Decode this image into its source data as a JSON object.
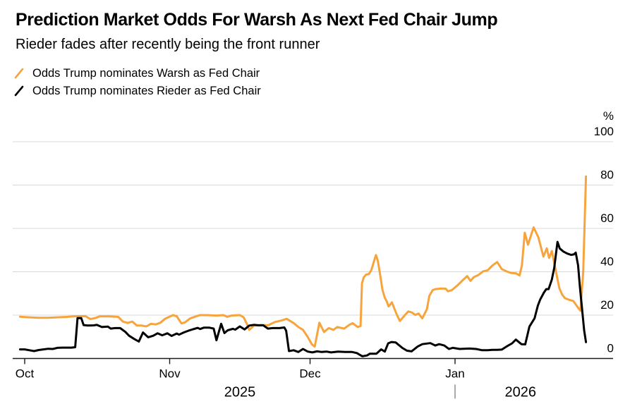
{
  "header": {
    "title": "Prediction Market Odds For Warsh As Next Fed Chair Jump",
    "subtitle": "Rieder fades after recently being the front runner"
  },
  "legend": [
    {
      "label": "Odds Trump nominates Warsh as Fed Chair",
      "color": "#F7A43C"
    },
    {
      "label": "Odds Trump nominates Rieder as Fed Chair",
      "color": "#000000"
    }
  ],
  "colors": {
    "background": "#ffffff",
    "gridline": "#d9d9d9",
    "axis": "#1a1a1a",
    "year_text": "#8e8e8e",
    "warsh_orange": "#F7A43C",
    "rieder_black": "#000000"
  },
  "chart_data": {
    "type": "line",
    "title": "Prediction Market Odds For Warsh As Next Fed Chair Jump",
    "subtitle": "Rieder fades after recently being the front runner",
    "unit_label": "%",
    "ylim": [
      0,
      100
    ],
    "yticks": [
      0,
      20,
      40,
      60,
      80,
      100
    ],
    "grid": "horizontal-only",
    "legend_position": "top-left",
    "x_axis": {
      "note": "day 0 = Oct 1, 2025; data runs Sep 30 2025 to late Jan 2026",
      "month_ticks": [
        {
          "label": "Oct",
          "day": 0
        },
        {
          "label": "Nov",
          "day": 31
        },
        {
          "label": "Dec",
          "day": 61
        },
        {
          "label": "Jan",
          "day": 92
        }
      ],
      "year_labels": [
        {
          "label": "2025",
          "center_day": 46
        },
        {
          "label": "2026",
          "center_day": 106
        }
      ],
      "year_divider_day": 92
    },
    "series": [
      {
        "id": "warsh",
        "name": "Odds Trump nominates Warsh as Fed Chair",
        "color": "#F7A43C",
        "points": [
          [
            -1,
            19.3
          ],
          [
            1,
            19
          ],
          [
            3,
            18.8
          ],
          [
            5,
            18.8
          ],
          [
            7,
            19
          ],
          [
            9,
            19.2
          ],
          [
            11,
            19.5
          ],
          [
            13,
            19.5
          ],
          [
            14,
            18.2
          ],
          [
            15,
            18.6
          ],
          [
            16,
            19.4
          ],
          [
            18,
            19.4
          ],
          [
            20,
            19.2
          ],
          [
            21,
            17
          ],
          [
            22,
            16.4
          ],
          [
            23,
            17
          ],
          [
            24,
            15.2
          ],
          [
            25,
            15.2
          ],
          [
            26,
            14.8
          ],
          [
            27,
            16
          ],
          [
            28,
            15.7
          ],
          [
            29,
            16.5
          ],
          [
            30,
            18.3
          ],
          [
            31.7,
            20
          ],
          [
            32.5,
            19.5
          ],
          [
            33.5,
            16.2
          ],
          [
            34.2,
            16.6
          ],
          [
            35.4,
            18.5
          ],
          [
            37.4,
            20
          ],
          [
            39,
            20
          ],
          [
            41,
            19.8
          ],
          [
            42.5,
            20
          ],
          [
            43.3,
            19.2
          ],
          [
            44.2,
            19.8
          ],
          [
            46,
            20
          ],
          [
            46.8,
            19
          ],
          [
            47.5,
            16
          ],
          [
            48,
            13.2
          ],
          [
            49,
            15.2
          ],
          [
            50.5,
            15.5
          ],
          [
            52,
            15.3
          ],
          [
            53.5,
            16.8
          ],
          [
            55,
            17.6
          ],
          [
            56,
            18.3
          ],
          [
            57.6,
            16.2
          ],
          [
            58.5,
            14.5
          ],
          [
            59.5,
            13.2
          ],
          [
            60.5,
            10
          ],
          [
            61.4,
            6.5
          ],
          [
            62,
            5.5
          ],
          [
            63,
            16.5
          ],
          [
            64,
            12.2
          ],
          [
            65,
            14
          ],
          [
            66,
            13.2
          ],
          [
            66.8,
            14.5
          ],
          [
            68.3,
            13.8
          ],
          [
            69.4,
            15.5
          ],
          [
            70.1,
            16.3
          ],
          [
            71.2,
            14.5
          ],
          [
            71.8,
            15
          ],
          [
            72.1,
            34.7
          ],
          [
            72.5,
            37.5
          ],
          [
            73,
            38.7
          ],
          [
            73.6,
            39
          ],
          [
            74.1,
            40.7
          ],
          [
            74.7,
            45
          ],
          [
            75.1,
            47.7
          ],
          [
            75.5,
            45
          ],
          [
            76,
            38.5
          ],
          [
            76.5,
            31.5
          ],
          [
            77,
            28
          ],
          [
            77.4,
            26.3
          ],
          [
            77.8,
            24
          ],
          [
            78.5,
            25.9
          ],
          [
            79.5,
            20.5
          ],
          [
            80.2,
            17.3
          ],
          [
            81.2,
            19.8
          ],
          [
            82,
            21.7
          ],
          [
            82.8,
            21.2
          ],
          [
            83.5,
            20.1
          ],
          [
            84.2,
            20.7
          ],
          [
            85,
            18.5
          ],
          [
            86,
            22.8
          ],
          [
            86.5,
            28.8
          ],
          [
            87.2,
            31.5
          ],
          [
            87.8,
            32
          ],
          [
            89,
            32.3
          ],
          [
            90,
            32.2
          ],
          [
            90.5,
            31
          ],
          [
            91.3,
            31.5
          ],
          [
            92.5,
            33.7
          ],
          [
            93.5,
            35.8
          ],
          [
            94.6,
            38
          ],
          [
            95.3,
            35.8
          ],
          [
            96,
            37.5
          ],
          [
            97,
            38.5
          ],
          [
            98,
            40.2
          ],
          [
            99,
            40.7
          ],
          [
            100,
            42.9
          ],
          [
            101,
            44.5
          ],
          [
            102,
            41.2
          ],
          [
            103,
            40.2
          ],
          [
            104,
            39.4
          ],
          [
            105,
            39.3
          ],
          [
            105.8,
            38.3
          ],
          [
            106.3,
            43
          ],
          [
            106.9,
            58
          ],
          [
            107.6,
            52.5
          ],
          [
            108.8,
            60.5
          ],
          [
            109.8,
            56
          ],
          [
            110.9,
            47
          ],
          [
            111.6,
            50.8
          ],
          [
            112.1,
            46.4
          ],
          [
            112.7,
            49.6
          ],
          [
            113.4,
            42
          ],
          [
            113.9,
            36.6
          ],
          [
            114.3,
            32.4
          ],
          [
            114.9,
            29.5
          ],
          [
            115.5,
            27.8
          ],
          [
            116.5,
            27
          ],
          [
            117.3,
            26.5
          ],
          [
            118.1,
            24
          ],
          [
            118.8,
            22
          ],
          [
            119.4,
            40
          ],
          [
            120,
            84
          ]
        ]
      },
      {
        "id": "rieder",
        "name": "Odds Trump nominates Rieder as Fed Chair",
        "color": "#000000",
        "points": [
          [
            -1,
            4.2
          ],
          [
            0,
            4.2
          ],
          [
            1,
            3.8
          ],
          [
            2,
            3.4
          ],
          [
            3,
            3.9
          ],
          [
            4,
            4.2
          ],
          [
            5,
            4.5
          ],
          [
            6,
            4.4
          ],
          [
            7,
            4.9
          ],
          [
            8,
            5
          ],
          [
            9,
            5
          ],
          [
            10,
            5
          ],
          [
            10.8,
            5.2
          ],
          [
            11.3,
            18.6
          ],
          [
            12.1,
            18.6
          ],
          [
            12.6,
            15.4
          ],
          [
            13.5,
            15.2
          ],
          [
            14.8,
            15.3
          ],
          [
            15.4,
            15.5
          ],
          [
            16.5,
            14.5
          ],
          [
            17.8,
            14.7
          ],
          [
            18.4,
            13.8
          ],
          [
            19.3,
            14
          ],
          [
            20.4,
            14
          ],
          [
            21.5,
            12.3
          ],
          [
            22.3,
            10.5
          ],
          [
            23.4,
            9
          ],
          [
            24.4,
            7.8
          ],
          [
            25.3,
            12
          ],
          [
            26.4,
            9.8
          ],
          [
            27.5,
            10.5
          ],
          [
            28.4,
            11.6
          ],
          [
            29.4,
            10.7
          ],
          [
            30.5,
            11.6
          ],
          [
            31.4,
            10.4
          ],
          [
            32.5,
            11.5
          ],
          [
            33,
            11
          ],
          [
            34,
            12
          ],
          [
            35,
            12.8
          ],
          [
            36,
            13.5
          ],
          [
            37,
            14.1
          ],
          [
            37.5,
            13.6
          ],
          [
            38.3,
            14.2
          ],
          [
            39.5,
            14.2
          ],
          [
            40.4,
            13.8
          ],
          [
            41,
            8.4
          ],
          [
            42,
            16
          ],
          [
            42.7,
            11.7
          ],
          [
            43.4,
            13
          ],
          [
            44.5,
            13.7
          ],
          [
            45,
            13.3
          ],
          [
            46,
            14.8
          ],
          [
            47,
            13.4
          ],
          [
            48,
            15.2
          ],
          [
            49,
            15.5
          ],
          [
            50,
            15.3
          ],
          [
            51,
            15.3
          ],
          [
            52,
            13.8
          ],
          [
            53,
            14
          ],
          [
            54.5,
            14
          ],
          [
            55.5,
            14.3
          ],
          [
            55.9,
            12.8
          ],
          [
            56.5,
            3.4
          ],
          [
            57.5,
            3.8
          ],
          [
            58.5,
            3
          ],
          [
            59.5,
            4.4
          ],
          [
            60.5,
            3.2
          ],
          [
            61.5,
            2.8
          ],
          [
            62.5,
            3.3
          ],
          [
            63.5,
            3
          ],
          [
            64.5,
            3.2
          ],
          [
            65.5,
            2.8
          ],
          [
            67,
            3.2
          ],
          [
            68.5,
            3
          ],
          [
            70,
            3
          ],
          [
            71,
            2.5
          ],
          [
            72.2,
            1
          ],
          [
            73.2,
            1.4
          ],
          [
            73.8,
            2.2
          ],
          [
            75.2,
            2.2
          ],
          [
            76.2,
            4.2
          ],
          [
            77,
            3.2
          ],
          [
            77.7,
            7
          ],
          [
            78.4,
            7.6
          ],
          [
            79.3,
            7.4
          ],
          [
            80.7,
            4.9
          ],
          [
            81.7,
            3.6
          ],
          [
            82.7,
            3.3
          ],
          [
            84,
            5.5
          ],
          [
            85,
            6.6
          ],
          [
            86.7,
            7.1
          ],
          [
            87.8,
            6
          ],
          [
            88.6,
            6.6
          ],
          [
            89.7,
            6
          ],
          [
            90.7,
            4.4
          ],
          [
            91.5,
            4.9
          ],
          [
            93,
            4.4
          ],
          [
            95,
            4.6
          ],
          [
            96.5,
            4.4
          ],
          [
            97.8,
            3.8
          ],
          [
            99,
            3.8
          ],
          [
            100,
            4
          ],
          [
            101,
            4
          ],
          [
            102,
            4.1
          ],
          [
            103,
            5.5
          ],
          [
            104.2,
            7
          ],
          [
            105,
            8.7
          ],
          [
            106.2,
            6.6
          ],
          [
            107,
            6.5
          ],
          [
            107.9,
            14.7
          ],
          [
            109,
            18.5
          ],
          [
            109.7,
            24.4
          ],
          [
            110.2,
            27.2
          ],
          [
            111,
            30.4
          ],
          [
            111.5,
            32
          ],
          [
            112,
            32
          ],
          [
            112.7,
            36.4
          ],
          [
            113.2,
            41.8
          ],
          [
            113.9,
            53.8
          ],
          [
            114.4,
            50.7
          ],
          [
            115.2,
            49.3
          ],
          [
            116,
            48.4
          ],
          [
            116.8,
            47.8
          ],
          [
            117.4,
            48
          ],
          [
            117.8,
            48.8
          ],
          [
            118.3,
            43
          ],
          [
            118.7,
            33
          ],
          [
            119.2,
            22
          ],
          [
            119.6,
            13
          ],
          [
            120,
            7.5
          ]
        ]
      }
    ]
  }
}
